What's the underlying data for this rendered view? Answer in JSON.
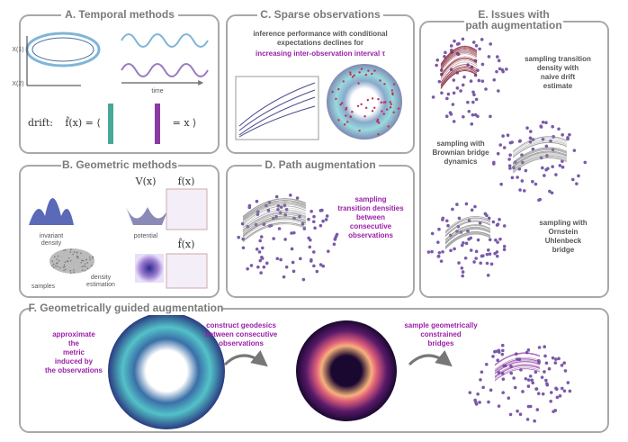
{
  "panels": {
    "a": {
      "title": [
        "A. Temporal methods"
      ],
      "time": [
        "time"
      ],
      "drift": [
        "drift:"
      ],
      "formula_left": [
        "f̂(x) = ⟨"
      ],
      "formula_right": [
        "= x ⟩"
      ],
      "axis": [
        "X(1)",
        "X(2)"
      ]
    },
    "b": {
      "title": [
        "B. Geometric methods"
      ],
      "invariant": [
        "invariant",
        "density"
      ],
      "potential": [
        "potential"
      ],
      "samples": [
        "samples"
      ],
      "estimation": [
        "density",
        "estimation"
      ],
      "vx": [
        "V(x)"
      ],
      "fx": [
        "f(x)",
        "f̂(x)"
      ]
    },
    "c": {
      "title": [
        "C. Sparse observations"
      ],
      "text": [
        "inference performance with conditional",
        "expectations declines for"
      ],
      "highlight": [
        "increasing inter-observation interval τ"
      ]
    },
    "d": {
      "title": [
        "D. Path augmentation"
      ],
      "text": [
        "sampling",
        "transition densities",
        "between",
        "consecutive",
        "observations"
      ]
    },
    "e": {
      "title": [
        "E. Issues with",
        "path augmentation"
      ],
      "naive": [
        "sampling transition",
        "density with",
        "naive drift",
        "estimate"
      ],
      "brownian": [
        "sampling with",
        "Brownian bridge",
        "dynamics"
      ],
      "ou": [
        "sampling with",
        "Ornstein",
        "Uhlenbeck",
        "bridge"
      ]
    },
    "f": {
      "title": [
        "F. Geometrically guided augmentation"
      ],
      "metric": [
        "approximate",
        "the",
        "metric",
        "induced by",
        "the observations"
      ],
      "geodesics": [
        "construct geodesics",
        "between consecutive",
        "observations"
      ],
      "bridges": [
        "sample geometrically",
        "constrained",
        "bridges"
      ]
    }
  }
}
